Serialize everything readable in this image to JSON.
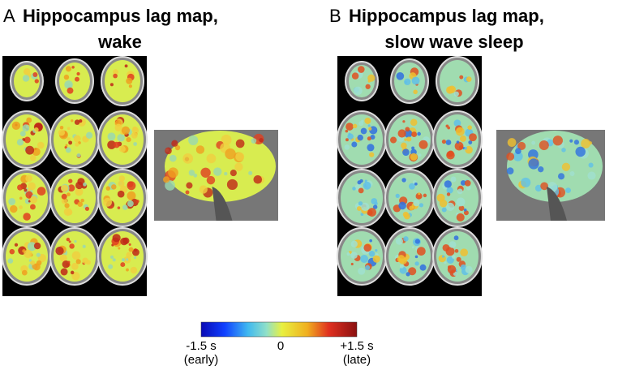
{
  "panels": [
    {
      "letter": "A",
      "title": "Hippocampus lag map,",
      "subtitle": "wake"
    },
    {
      "letter": "B",
      "title": "Hippocampus lag map,",
      "subtitle": "slow wave sleep"
    }
  ],
  "colorbar": {
    "min_label": "-1.5 s",
    "min_note": "(early)",
    "mid_label": "0",
    "max_label": "+1.5 s",
    "max_note": "(late)"
  }
}
